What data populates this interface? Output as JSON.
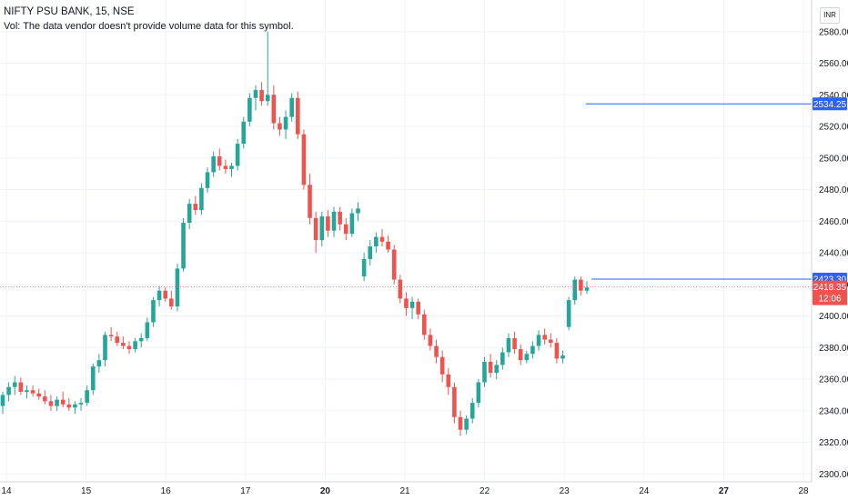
{
  "header": {
    "title": "NIFTY PSU BANK, 15, NSE",
    "volume_note": "Vol: The data vendor doesn't provide volume data for this symbol.",
    "currency": "INR"
  },
  "colors": {
    "up": "#26a69a",
    "down": "#ef5350",
    "line": "#2962ff",
    "grid": "#f0f3fa",
    "axis_text": "#131722"
  },
  "chart_data": {
    "type": "candlestick",
    "symbol": "NIFTY PSU BANK",
    "interval": "15",
    "exchange": "NSE",
    "ylim": [
      2295,
      2600
    ],
    "y_ticks": [
      "2300.00",
      "2320.00",
      "2340.00",
      "2360.00",
      "2380.00",
      "2400.00",
      "2420.00",
      "2440.00",
      "2460.00",
      "2480.00",
      "2500.00",
      "2520.00",
      "2540.00",
      "2560.00",
      "2580.00"
    ],
    "x_ticks": [
      {
        "label": "14",
        "bold": false
      },
      {
        "label": "15",
        "bold": false
      },
      {
        "label": "16",
        "bold": false
      },
      {
        "label": "17",
        "bold": false
      },
      {
        "label": "20",
        "bold": true
      },
      {
        "label": "21",
        "bold": false
      },
      {
        "label": "22",
        "bold": false
      },
      {
        "label": "23",
        "bold": false
      },
      {
        "label": "24",
        "bold": false
      },
      {
        "label": "27",
        "bold": true
      },
      {
        "label": "28",
        "bold": false
      }
    ],
    "horizontal_lines": [
      {
        "value": 2534.25,
        "label": "2534.25"
      },
      {
        "value": 2423.3,
        "label": "2423.30"
      }
    ],
    "last_price": {
      "value": 2418.35,
      "label": "2418.35",
      "countdown": "12:06"
    },
    "candles": [
      [
        2343,
        2352,
        2338,
        2350
      ],
      [
        2350,
        2358,
        2346,
        2355
      ],
      [
        2355,
        2362,
        2350,
        2358
      ],
      [
        2358,
        2361,
        2350,
        2352
      ],
      [
        2352,
        2356,
        2348,
        2353
      ],
      [
        2353,
        2356,
        2349,
        2351
      ],
      [
        2351,
        2354,
        2347,
        2349
      ],
      [
        2349,
        2353,
        2344,
        2346
      ],
      [
        2346,
        2350,
        2340,
        2343
      ],
      [
        2343,
        2349,
        2340,
        2347
      ],
      [
        2347,
        2352,
        2342,
        2344
      ],
      [
        2344,
        2348,
        2340,
        2342
      ],
      [
        2342,
        2346,
        2338,
        2344
      ],
      [
        2344,
        2348,
        2340,
        2345
      ],
      [
        2345,
        2356,
        2343,
        2353
      ],
      [
        2353,
        2370,
        2350,
        2368
      ],
      [
        2368,
        2376,
        2364,
        2372
      ],
      [
        2372,
        2390,
        2368,
        2388
      ],
      [
        2388,
        2393,
        2384,
        2387
      ],
      [
        2387,
        2390,
        2381,
        2383
      ],
      [
        2383,
        2387,
        2379,
        2381
      ],
      [
        2381,
        2384,
        2376,
        2379
      ],
      [
        2379,
        2386,
        2377,
        2384
      ],
      [
        2384,
        2389,
        2380,
        2386
      ],
      [
        2386,
        2399,
        2384,
        2396
      ],
      [
        2396,
        2412,
        2393,
        2410
      ],
      [
        2410,
        2419,
        2406,
        2416
      ],
      [
        2416,
        2418,
        2409,
        2411
      ],
      [
        2411,
        2416,
        2404,
        2406
      ],
      [
        2406,
        2433,
        2403,
        2430
      ],
      [
        2430,
        2462,
        2428,
        2459
      ],
      [
        2459,
        2474,
        2455,
        2471
      ],
      [
        2471,
        2476,
        2464,
        2467
      ],
      [
        2467,
        2484,
        2464,
        2481
      ],
      [
        2481,
        2494,
        2478,
        2491
      ],
      [
        2491,
        2504,
        2488,
        2501
      ],
      [
        2501,
        2506,
        2492,
        2495
      ],
      [
        2495,
        2499,
        2490,
        2493
      ],
      [
        2493,
        2497,
        2488,
        2495
      ],
      [
        2495,
        2512,
        2492,
        2509
      ],
      [
        2509,
        2526,
        2506,
        2523
      ],
      [
        2523,
        2541,
        2520,
        2538
      ],
      [
        2538,
        2546,
        2530,
        2543
      ],
      [
        2543,
        2548,
        2533,
        2536
      ],
      [
        2536,
        2580,
        2533,
        2540
      ],
      [
        2540,
        2546,
        2518,
        2522
      ],
      [
        2522,
        2526,
        2514,
        2518
      ],
      [
        2518,
        2530,
        2512,
        2526
      ],
      [
        2526,
        2541,
        2523,
        2538
      ],
      [
        2538,
        2542,
        2512,
        2515
      ],
      [
        2515,
        2518,
        2480,
        2483
      ],
      [
        2483,
        2490,
        2458,
        2462
      ],
      [
        2462,
        2466,
        2440,
        2448
      ],
      [
        2448,
        2466,
        2444,
        2463
      ],
      [
        2463,
        2467,
        2450,
        2454
      ],
      [
        2454,
        2469,
        2450,
        2466
      ],
      [
        2466,
        2469,
        2454,
        2458
      ],
      [
        2458,
        2462,
        2448,
        2452
      ],
      [
        2452,
        2468,
        2450,
        2465
      ],
      [
        2465,
        2472,
        2460,
        2468
      ],
      [
        2425,
        2440,
        2422,
        2436
      ],
      [
        2436,
        2448,
        2432,
        2444
      ],
      [
        2444,
        2453,
        2440,
        2450
      ],
      [
        2450,
        2455,
        2444,
        2447
      ],
      [
        2447,
        2451,
        2440,
        2442
      ],
      [
        2442,
        2445,
        2420,
        2423
      ],
      [
        2423,
        2426,
        2408,
        2411
      ],
      [
        2411,
        2415,
        2400,
        2405
      ],
      [
        2405,
        2412,
        2398,
        2409
      ],
      [
        2409,
        2411,
        2398,
        2401
      ],
      [
        2401,
        2404,
        2385,
        2388
      ],
      [
        2388,
        2392,
        2378,
        2381
      ],
      [
        2381,
        2385,
        2370,
        2374
      ],
      [
        2374,
        2378,
        2358,
        2363
      ],
      [
        2363,
        2367,
        2350,
        2355
      ],
      [
        2355,
        2358,
        2332,
        2336
      ],
      [
        2336,
        2340,
        2324,
        2328
      ],
      [
        2328,
        2337,
        2325,
        2335
      ],
      [
        2335,
        2348,
        2332,
        2345
      ],
      [
        2345,
        2360,
        2342,
        2358
      ],
      [
        2358,
        2374,
        2355,
        2371
      ],
      [
        2371,
        2376,
        2361,
        2364
      ],
      [
        2364,
        2372,
        2360,
        2369
      ],
      [
        2369,
        2380,
        2366,
        2377
      ],
      [
        2377,
        2389,
        2374,
        2386
      ],
      [
        2386,
        2390,
        2376,
        2379
      ],
      [
        2379,
        2382,
        2369,
        2372
      ],
      [
        2372,
        2378,
        2370,
        2376
      ],
      [
        2376,
        2384,
        2373,
        2381
      ],
      [
        2381,
        2391,
        2378,
        2388
      ],
      [
        2388,
        2392,
        2382,
        2385
      ],
      [
        2385,
        2389,
        2380,
        2383
      ],
      [
        2383,
        2386,
        2370,
        2373
      ],
      [
        2373,
        2378,
        2370,
        2375
      ],
      [
        2393,
        2412,
        2391,
        2410
      ],
      [
        2410,
        2425,
        2407,
        2423
      ],
      [
        2423,
        2425,
        2413,
        2416
      ],
      [
        2416,
        2422,
        2414,
        2418
      ]
    ]
  }
}
